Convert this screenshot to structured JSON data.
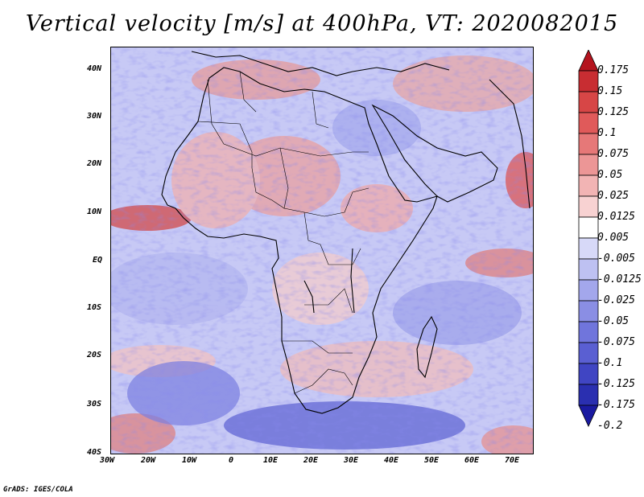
{
  "title": "Vertical velocity [m/s] at 400hPa, VT: 2020082015",
  "credit": "GrADS: IGES/COLA",
  "map": {
    "region": "Africa and surrounding oceans",
    "lat_ticks": [
      "40N",
      "30N",
      "20N",
      "10N",
      "EQ",
      "10S",
      "20S",
      "30S",
      "40S"
    ],
    "lon_ticks": [
      "30W",
      "20W",
      "10W",
      "0",
      "10E",
      "20E",
      "30E",
      "40E",
      "50E",
      "60E",
      "70E"
    ]
  },
  "colorbar": {
    "labels": [
      "0.175",
      "0.15",
      "0.125",
      "0.1",
      "0.075",
      "0.05",
      "0.025",
      "0.0125",
      "0.005",
      "-0.005",
      "-0.0125",
      "-0.025",
      "-0.05",
      "-0.075",
      "-0.1",
      "-0.125",
      "-0.175",
      "-0.2"
    ],
    "colors": [
      "#b4141e",
      "#c82d32",
      "#d74646",
      "#e05a5a",
      "#e67878",
      "#ec9696",
      "#f2b4b4",
      "#f8d2d2",
      "#ffffff",
      "#d7d9f8",
      "#bec1f2",
      "#a3a7ec",
      "#8a8ee4",
      "#7075dc",
      "#5a5fd2",
      "#4045c3",
      "#2a2fb0",
      "#1a1aa0"
    ]
  }
}
